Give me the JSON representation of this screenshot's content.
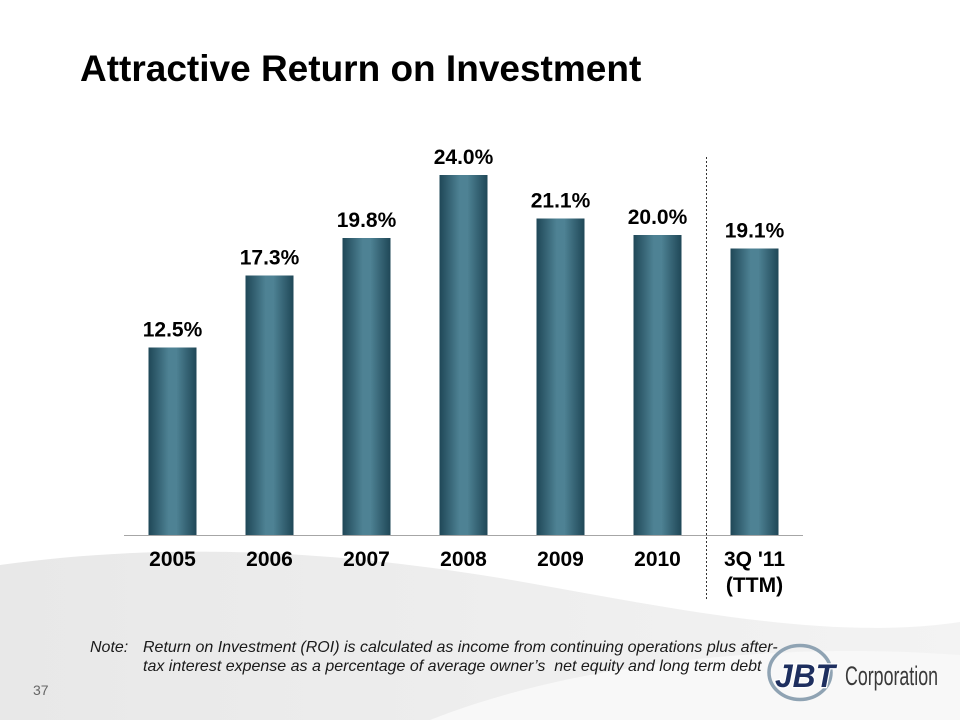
{
  "slide": {
    "title": "Attractive Return on Investment",
    "page_number": "37"
  },
  "note": {
    "label": "Note:",
    "text": "Return on Investment (ROI) is calculated as income from continuing operations plus after-tax interest expense as a percentage of average owner’s  net equity and long term debt"
  },
  "logo": {
    "mark": "JBT",
    "wordmark": "Corporation"
  },
  "colors": {
    "bar_edge": "#1f4757",
    "bar_center": "#4e8294"
  },
  "chart_data": {
    "type": "bar",
    "categories": [
      "2005",
      "2006",
      "2007",
      "2008",
      "2009",
      "2010",
      "3Q '11 (TTM)"
    ],
    "values": [
      12.5,
      17.3,
      19.8,
      24.0,
      21.1,
      20.0,
      19.1
    ],
    "data_labels": [
      "12.5%",
      "17.3%",
      "19.8%",
      "24.0%",
      "21.1%",
      "20.0%",
      "19.1%"
    ],
    "ylim": [
      0,
      30
    ],
    "grid": false,
    "legend": "none"
  }
}
